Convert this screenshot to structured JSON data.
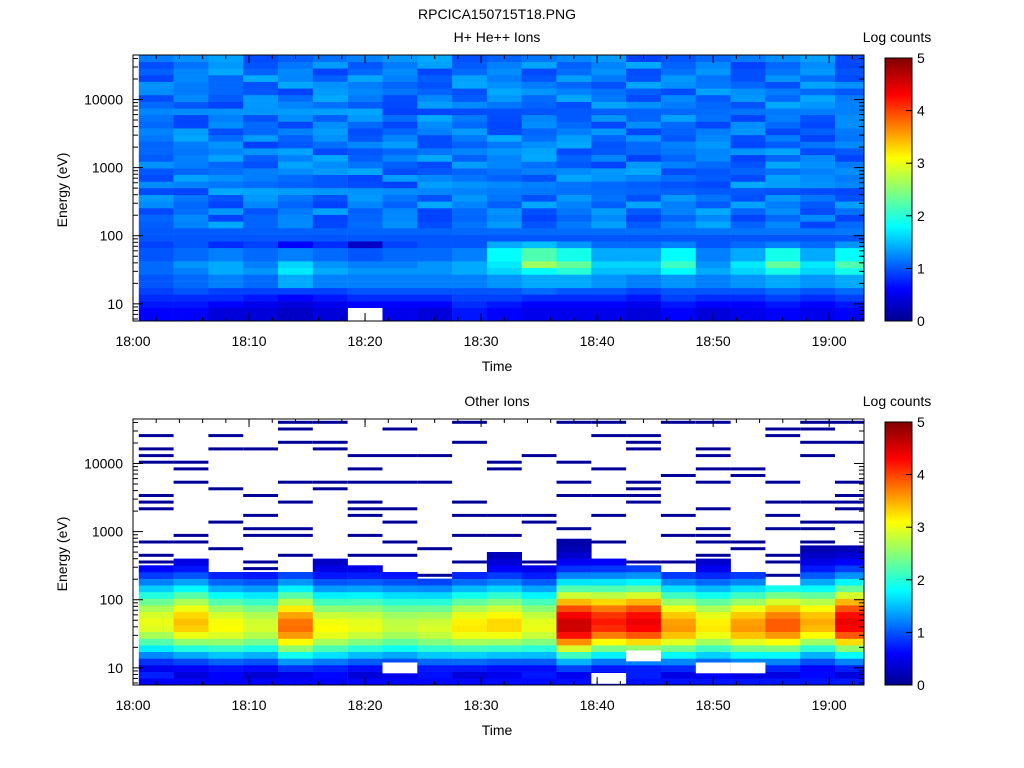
{
  "figure_title": "RPCICA150715T18.PNG",
  "colors": {
    "jet_scale": [
      "#00008f",
      "#0000ff",
      "#00ffff",
      "#ffff00",
      "#ff0000",
      "#800000"
    ]
  },
  "chart_data": [
    {
      "type": "heatmap",
      "title": "H+ He++ Ions",
      "xlabel": "Time",
      "ylabel": "Energy (eV)",
      "x_ticks": [
        "18:00",
        "18:10",
        "18:20",
        "18:30",
        "18:40",
        "18:50",
        "19:00"
      ],
      "x_range": [
        "18:00",
        "19:03"
      ],
      "y_scale": "log",
      "y_range": [
        5.6,
        45000
      ],
      "y_ticks": [
        "10",
        "100",
        "1000",
        "10000"
      ],
      "colorbar": {
        "label": "Log counts",
        "range": [
          0,
          5
        ],
        "ticks": [
          "0",
          "1",
          "2",
          "3",
          "4",
          "5"
        ]
      },
      "time_bins": [
        "18:02",
        "18:05",
        "18:08",
        "18:11",
        "18:14",
        "18:17",
        "18:20",
        "18:23",
        "18:26",
        "18:29",
        "18:32",
        "18:35",
        "18:38",
        "18:41",
        "18:44",
        "18:47",
        "18:50",
        "18:53",
        "18:56",
        "18:59",
        "19:02"
      ],
      "low_energy_profile": {
        "energy_eV": [
          7,
          9,
          12,
          16,
          22,
          30,
          40,
          55,
          75,
          100
        ],
        "log_counts_by_bin": [
          [
            0.6,
            0.7,
            0.8,
            0.9,
            1.0,
            1.1,
            1.1,
            1.0,
            0.9,
            1.0
          ],
          [
            0.6,
            0.7,
            0.8,
            1.0,
            1.1,
            1.2,
            1.3,
            1.1,
            1.0,
            1.0
          ],
          [
            0.4,
            0.6,
            0.8,
            0.9,
            1.2,
            1.4,
            1.4,
            1.2,
            0.8,
            1.0
          ],
          [
            0.4,
            0.5,
            0.7,
            0.9,
            1.1,
            1.3,
            1.2,
            1.1,
            0.9,
            1.0
          ],
          [
            0.3,
            0.4,
            0.6,
            0.9,
            1.4,
            1.7,
            1.6,
            1.2,
            0.6,
            1.0
          ],
          [
            0.4,
            0.5,
            0.7,
            0.9,
            1.2,
            1.4,
            1.3,
            1.1,
            0.8,
            1.0
          ],
          [
            null,
            0.6,
            0.8,
            1.0,
            1.2,
            1.3,
            1.2,
            1.0,
            0.3,
            1.0
          ],
          [
            0.5,
            0.6,
            0.8,
            1.0,
            1.2,
            1.3,
            1.2,
            1.1,
            0.9,
            1.0
          ],
          [
            0.4,
            0.6,
            0.8,
            1.0,
            1.2,
            1.3,
            1.3,
            1.1,
            1.0,
            1.0
          ],
          [
            0.7,
            0.8,
            0.9,
            1.0,
            1.2,
            1.4,
            1.4,
            1.2,
            1.0,
            1.0
          ],
          [
            0.6,
            0.7,
            0.9,
            1.0,
            1.3,
            1.6,
            1.7,
            1.8,
            1.4,
            1.0
          ],
          [
            0.5,
            0.6,
            0.8,
            1.1,
            1.4,
            1.8,
            2.6,
            2.2,
            1.5,
            1.0
          ],
          [
            0.5,
            0.6,
            0.8,
            1.0,
            1.4,
            2.0,
            2.3,
            1.9,
            1.3,
            1.0
          ],
          [
            0.5,
            0.6,
            0.8,
            1.0,
            1.3,
            1.5,
            1.6,
            1.4,
            1.1,
            1.0
          ],
          [
            0.4,
            0.5,
            0.7,
            0.9,
            1.2,
            1.5,
            1.6,
            1.4,
            1.1,
            1.0
          ],
          [
            0.6,
            0.7,
            0.9,
            1.0,
            1.3,
            1.8,
            2.1,
            1.8,
            1.2,
            1.0
          ],
          [
            0.4,
            0.6,
            0.8,
            1.0,
            1.2,
            1.4,
            1.3,
            1.2,
            1.0,
            1.0
          ],
          [
            0.5,
            0.6,
            0.8,
            1.0,
            1.3,
            1.6,
            1.7,
            1.4,
            1.1,
            1.0
          ],
          [
            0.6,
            0.7,
            0.9,
            1.1,
            1.4,
            1.9,
            2.3,
            1.9,
            1.2,
            1.0
          ],
          [
            0.5,
            0.6,
            0.8,
            1.0,
            1.3,
            1.6,
            1.7,
            1.4,
            1.1,
            1.0
          ],
          [
            0.6,
            0.7,
            0.9,
            1.1,
            1.4,
            1.9,
            2.2,
            1.8,
            1.3,
            1.0
          ]
        ]
      },
      "high_energy_background_log_counts": [
        0.9,
        1.4
      ]
    },
    {
      "type": "heatmap",
      "title": "Other Ions",
      "xlabel": "Time",
      "ylabel": "Energy (eV)",
      "x_ticks": [
        "18:00",
        "18:10",
        "18:20",
        "18:30",
        "18:40",
        "18:50",
        "19:00"
      ],
      "x_range": [
        "18:00",
        "19:03"
      ],
      "y_scale": "log",
      "y_range": [
        5.6,
        45000
      ],
      "y_ticks": [
        "10",
        "100",
        "1000",
        "10000"
      ],
      "colorbar": {
        "label": "Log counts",
        "range": [
          0,
          5
        ],
        "ticks": [
          "0",
          "1",
          "2",
          "3",
          "4",
          "5"
        ]
      },
      "time_bins": [
        "18:02",
        "18:05",
        "18:08",
        "18:11",
        "18:14",
        "18:17",
        "18:20",
        "18:23",
        "18:26",
        "18:29",
        "18:32",
        "18:35",
        "18:38",
        "18:41",
        "18:44",
        "18:47",
        "18:50",
        "18:53",
        "18:56",
        "18:59",
        "19:02"
      ],
      "peak_log_counts": [
        3.0,
        3.4,
        3.1,
        2.9,
        3.8,
        3.1,
        3.0,
        2.8,
        2.9,
        3.2,
        3.3,
        3.0,
        4.6,
        4.2,
        4.4,
        3.6,
        3.2,
        3.6,
        3.9,
        3.5,
        4.4
      ],
      "peak_energy_eV": [
        45,
        45,
        40,
        40,
        40,
        38,
        40,
        40,
        38,
        40,
        42,
        40,
        42,
        45,
        45,
        40,
        40,
        40,
        42,
        45,
        45
      ],
      "upper_extent_eV": [
        330,
        400,
        230,
        250,
        280,
        410,
        300,
        260,
        200,
        250,
        520,
        350,
        750,
        430,
        320,
        230,
        440,
        280,
        180,
        580,
        600
      ],
      "sparse_high_energy_hits_per_bin": [
        8,
        9,
        8,
        9,
        10,
        8,
        9,
        8,
        9,
        9,
        7,
        8,
        10,
        9,
        9,
        9,
        10,
        9,
        8,
        9,
        9
      ],
      "empty_low_energy_cells": [
        [
          "18:23",
          "10 eV"
        ],
        [
          "18:41",
          "7 eV"
        ],
        [
          "18:50",
          "10 eV"
        ],
        [
          "18:53",
          "10 eV"
        ],
        [
          "18:44",
          "15 eV"
        ]
      ]
    }
  ]
}
